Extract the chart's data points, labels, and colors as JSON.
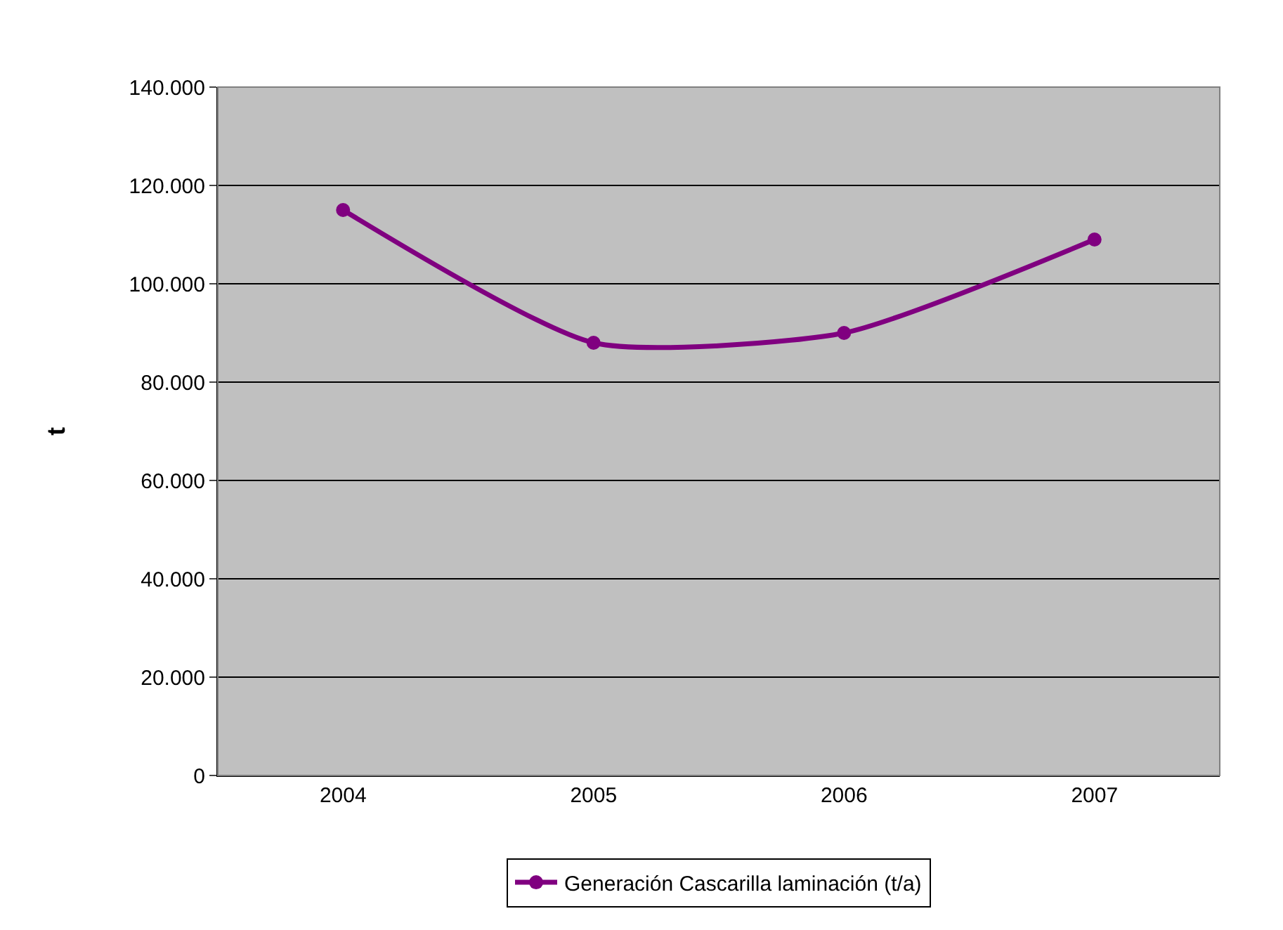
{
  "chart_data": {
    "type": "line",
    "ylabel": "t",
    "categories": [
      "2004",
      "2005",
      "2006",
      "2007"
    ],
    "series": [
      {
        "name": "Generación Cascarilla laminación (t/a)",
        "color": "#800080",
        "values": [
          115000,
          88000,
          90000,
          109000
        ]
      }
    ],
    "ylim": [
      0,
      140000
    ],
    "yticks": [
      {
        "value": 0,
        "label": "0"
      },
      {
        "value": 20000,
        "label": "20.000"
      },
      {
        "value": 40000,
        "label": "40.000"
      },
      {
        "value": 60000,
        "label": "60.000"
      },
      {
        "value": 80000,
        "label": "80.000"
      },
      {
        "value": 100000,
        "label": "100.000"
      },
      {
        "value": 120000,
        "label": "120.000"
      },
      {
        "value": 140000,
        "label": "140.000"
      }
    ],
    "grid": "y",
    "legend": "bottom",
    "marker": "circle",
    "line_style": "solid"
  }
}
